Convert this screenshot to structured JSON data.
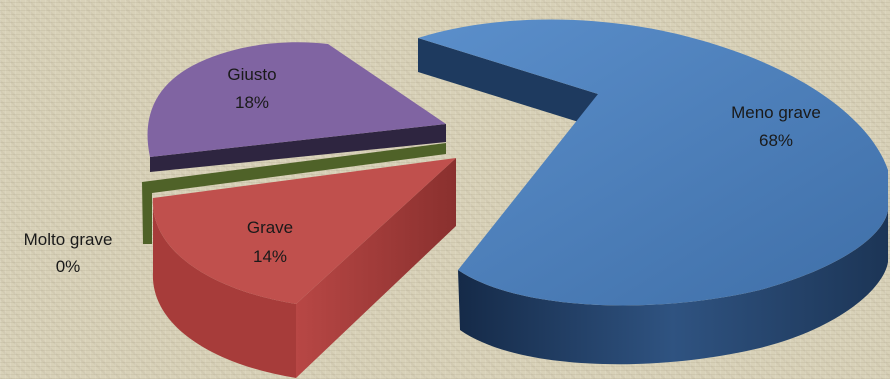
{
  "chart_data": {
    "type": "pie",
    "style": "3d-exploded",
    "title": "",
    "slices": [
      {
        "name": "Meno grave",
        "value": 68,
        "label": "68%",
        "color": "#4f81bd"
      },
      {
        "name": "Giusto",
        "value": 18,
        "label": "18%",
        "color": "#8064a2"
      },
      {
        "name": "Grave",
        "value": 14,
        "label": "14%",
        "color": "#c0504d"
      },
      {
        "name": "Molto grave",
        "value": 0,
        "label": "0%",
        "color": "#4f6228"
      }
    ]
  }
}
